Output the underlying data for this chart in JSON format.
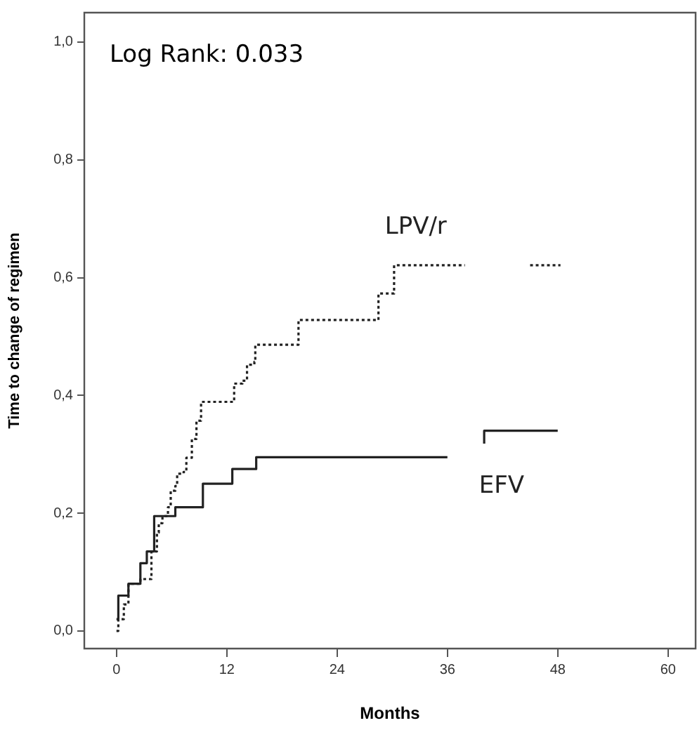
{
  "chart_data": {
    "type": "step",
    "xlabel": "Months",
    "ylabel": "Time to change of regimen",
    "annotations": [
      "Log Rank: 0.033"
    ],
    "xlim": [
      -3.5,
      63
    ],
    "xticks": [
      0,
      12,
      24,
      36,
      48,
      60
    ],
    "ylim": [
      -0.03,
      1.05
    ],
    "yticks": [
      {
        "value": 0,
        "label": "0,0"
      },
      {
        "value": 0.2,
        "label": "0,2"
      },
      {
        "value": 0.4,
        "label": "0,4"
      },
      {
        "value": 0.6,
        "label": "0,6"
      },
      {
        "value": 0.8,
        "label": "0,8"
      },
      {
        "value": 1,
        "label": "1,0"
      }
    ],
    "grid": false,
    "legend": false,
    "marker": "none",
    "series": [
      {
        "name": "LPV/r",
        "color": "#222222",
        "line_style": "dotted",
        "x": [
          0,
          0.2,
          0.8,
          1.3,
          2.6,
          3.8,
          4.4,
          4.6,
          5,
          5.6,
          5.9,
          6.4,
          6.6,
          7.3,
          7.6,
          8.2,
          8.7,
          9.2,
          12.8,
          13.7,
          14.2,
          15,
          15.1,
          19.8,
          28.5,
          30.2,
          37.9,
          41,
          45,
          48.3
        ],
        "values": [
          0,
          0.02,
          0.045,
          0.08,
          0.088,
          0.135,
          0.167,
          0.183,
          0.195,
          0.21,
          0.238,
          0.246,
          0.267,
          0.27,
          0.294,
          0.326,
          0.357,
          0.389,
          0.42,
          0.425,
          0.452,
          0.457,
          0.486,
          0.528,
          0.573,
          0.621,
          0.621,
          null,
          0.621,
          0.621
        ]
      },
      {
        "name": "EFV",
        "color": "#222222",
        "line_style": "solid",
        "x": [
          0,
          0.2,
          1.3,
          2.6,
          3.3,
          4.1,
          6.4,
          9.4,
          12.6,
          15.2,
          36,
          38,
          40,
          40,
          48
        ],
        "values": [
          0.02,
          0.06,
          0.08,
          0.115,
          0.135,
          0.195,
          0.21,
          0.25,
          0.275,
          0.295,
          0.295,
          null,
          0.318,
          0.34,
          0.34
        ]
      }
    ]
  }
}
